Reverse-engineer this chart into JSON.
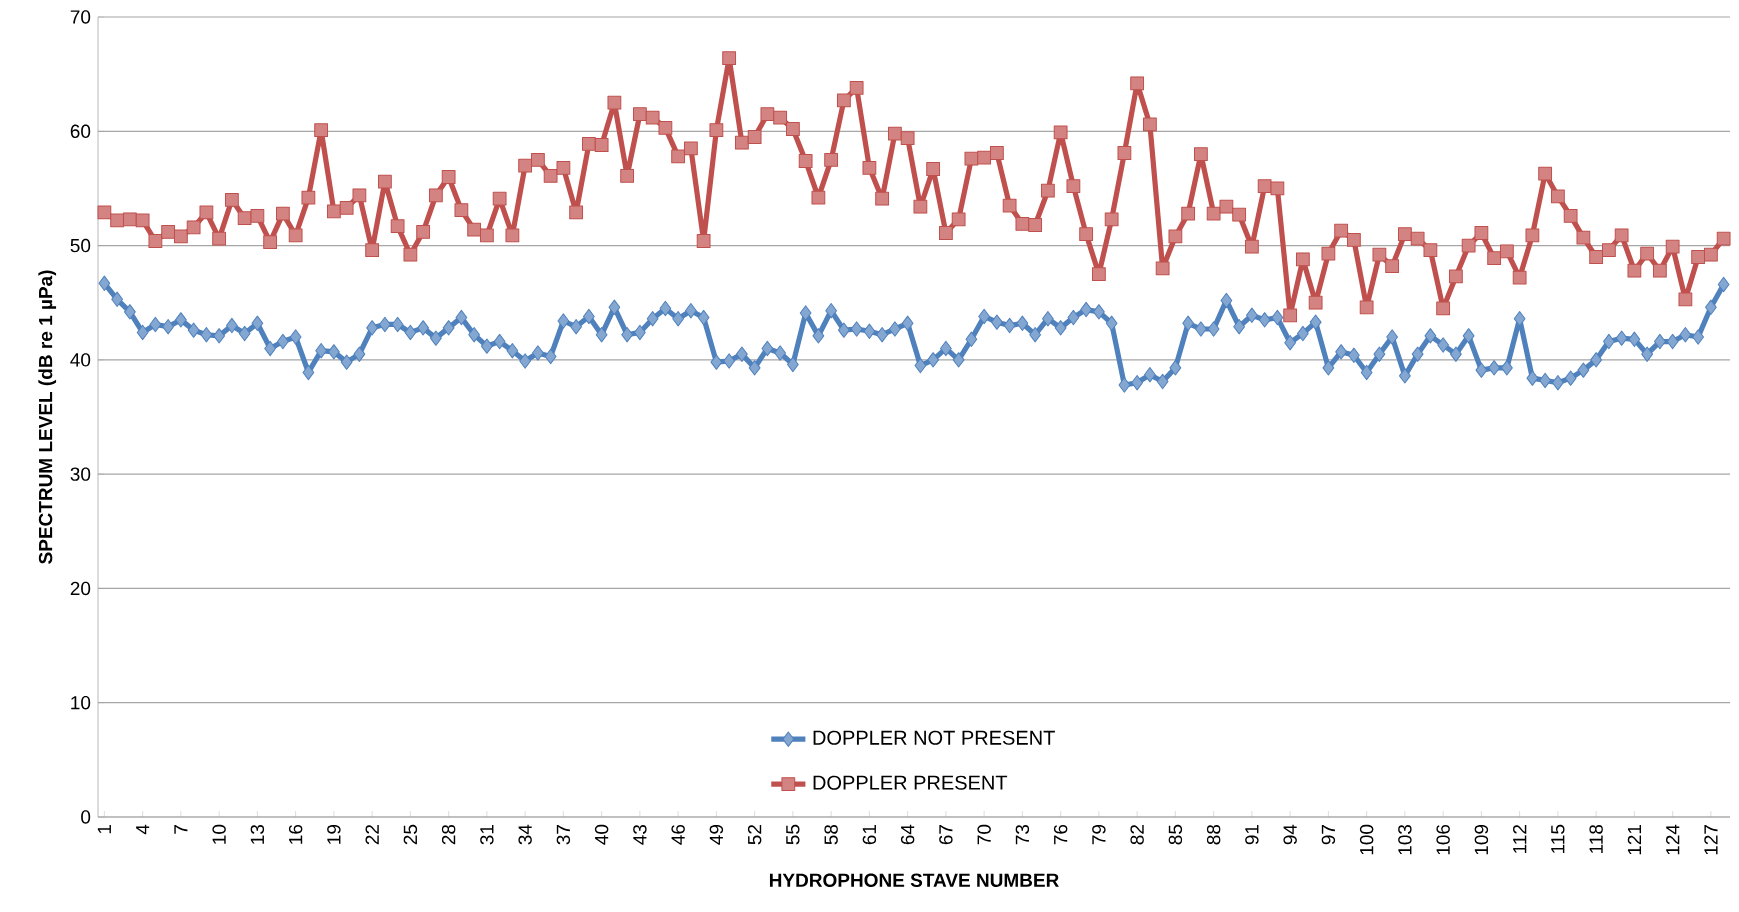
{
  "chart_data": {
    "type": "line",
    "xlabel": "HYDROPHONE STAVE NUMBER",
    "ylabel": "SPECTRUM LEVEL (dB re 1 µPa)",
    "categories": [
      "1",
      null,
      null,
      "4",
      null,
      null,
      "7",
      null,
      null,
      "10",
      null,
      null,
      "13",
      null,
      null,
      "16",
      null,
      null,
      "19",
      null,
      null,
      "22",
      null,
      null,
      "25",
      null,
      null,
      "28",
      null,
      null,
      "31",
      null,
      null,
      "34",
      null,
      null,
      "37",
      null,
      null,
      "40",
      null,
      null,
      "43",
      null,
      null,
      "46",
      null,
      null,
      "49",
      null,
      null,
      "52",
      null,
      null,
      "55",
      null,
      null,
      "58",
      null,
      null,
      "61",
      null,
      null,
      "64",
      null,
      null,
      "67",
      null,
      null,
      "70",
      null,
      null,
      "73",
      null,
      null,
      "76",
      null,
      null,
      "79",
      null,
      null,
      "82",
      null,
      null,
      "85",
      null,
      null,
      "88",
      null,
      null,
      "91",
      null,
      null,
      "94",
      null,
      null,
      "97",
      null,
      null,
      "100",
      null,
      null,
      "103",
      null,
      null,
      "106",
      null,
      null,
      "109",
      null,
      null,
      "112",
      null,
      null,
      "115",
      null,
      null,
      "118",
      null,
      null,
      "121",
      null,
      null,
      "124",
      null,
      null,
      "127",
      null
    ],
    "series": [
      {
        "name": "DOPPLER NOT PRESENT",
        "color": "#4f81bd",
        "marker": "diamond",
        "values": [
          46.7,
          45.3,
          44.2,
          42.4,
          43.1,
          42.9,
          43.5,
          42.6,
          42.2,
          42.1,
          43.0,
          42.3,
          43.2,
          41.0,
          41.6,
          42.0,
          38.9,
          40.8,
          40.7,
          39.8,
          40.5,
          42.8,
          43.1,
          43.1,
          42.4,
          42.8,
          41.9,
          42.8,
          43.7,
          42.2,
          41.2,
          41.6,
          40.8,
          39.9,
          40.6,
          40.3,
          43.4,
          42.9,
          43.8,
          42.2,
          44.6,
          42.2,
          42.4,
          43.6,
          44.5,
          43.6,
          44.3,
          43.7,
          39.8,
          39.9,
          40.5,
          39.3,
          41.0,
          40.6,
          39.6,
          44.1,
          42.1,
          44.3,
          42.6,
          42.7,
          42.5,
          42.2,
          42.7,
          43.2,
          39.5,
          40.0,
          41.0,
          40.0,
          41.8,
          43.8,
          43.3,
          43.0,
          43.2,
          42.2,
          43.6,
          42.8,
          43.7,
          44.4,
          44.2,
          43.2,
          37.8,
          38.0,
          38.7,
          38.1,
          39.3,
          43.2,
          42.7,
          42.7,
          45.2,
          42.9,
          43.9,
          43.5,
          43.7,
          41.5,
          42.3,
          43.3,
          39.3,
          40.7,
          40.4,
          38.9,
          40.5,
          42.0,
          38.6,
          40.5,
          42.1,
          41.3,
          40.5,
          42.1,
          39.1,
          39.3,
          39.3,
          43.6,
          38.4,
          38.2,
          38.0,
          38.4,
          39.1,
          40.0,
          41.6,
          41.9,
          41.8,
          40.5,
          41.6,
          41.6,
          42.2,
          42.0,
          44.6,
          46.6
        ]
      },
      {
        "name": "DOPPLER PRESENT",
        "color": "#c0504d",
        "marker": "square",
        "values": [
          52.9,
          52.2,
          52.3,
          52.2,
          50.4,
          51.2,
          50.8,
          51.6,
          52.9,
          50.6,
          54.0,
          52.4,
          52.6,
          50.3,
          52.8,
          50.9,
          54.2,
          60.1,
          53.0,
          53.3,
          54.4,
          49.6,
          55.6,
          51.7,
          49.2,
          51.2,
          54.4,
          56.0,
          53.1,
          51.4,
          50.9,
          54.1,
          50.9,
          57.0,
          57.5,
          56.1,
          56.8,
          52.9,
          58.9,
          58.8,
          62.5,
          56.1,
          61.5,
          61.2,
          60.3,
          57.8,
          58.5,
          50.4,
          60.1,
          66.4,
          59.0,
          59.5,
          61.5,
          61.2,
          60.2,
          57.4,
          54.2,
          57.5,
          62.7,
          63.8,
          56.8,
          54.1,
          59.8,
          59.4,
          53.4,
          56.7,
          51.1,
          52.3,
          57.6,
          57.7,
          58.1,
          53.5,
          51.9,
          51.8,
          54.8,
          59.9,
          55.2,
          51.0,
          47.5,
          52.3,
          58.1,
          64.2,
          60.6,
          48.0,
          50.8,
          52.8,
          58.0,
          52.8,
          53.4,
          52.7,
          49.9,
          55.2,
          55.0,
          43.9,
          48.8,
          45.0,
          49.3,
          51.3,
          50.5,
          44.6,
          49.2,
          48.2,
          51.0,
          50.6,
          49.6,
          44.5,
          47.3,
          50.0,
          51.1,
          48.9,
          49.5,
          47.2,
          50.9,
          56.3,
          54.3,
          52.6,
          50.7,
          49.0,
          49.6,
          50.9,
          47.8,
          49.3,
          47.8,
          49.9,
          45.3,
          49.0,
          49.2,
          50.6
        ]
      }
    ],
    "ylim": [
      0,
      70
    ],
    "yticks": [
      0,
      10,
      20,
      30,
      40,
      50,
      60,
      70
    ],
    "grid": "y",
    "legend": "bottom",
    "line_style": "solid"
  }
}
